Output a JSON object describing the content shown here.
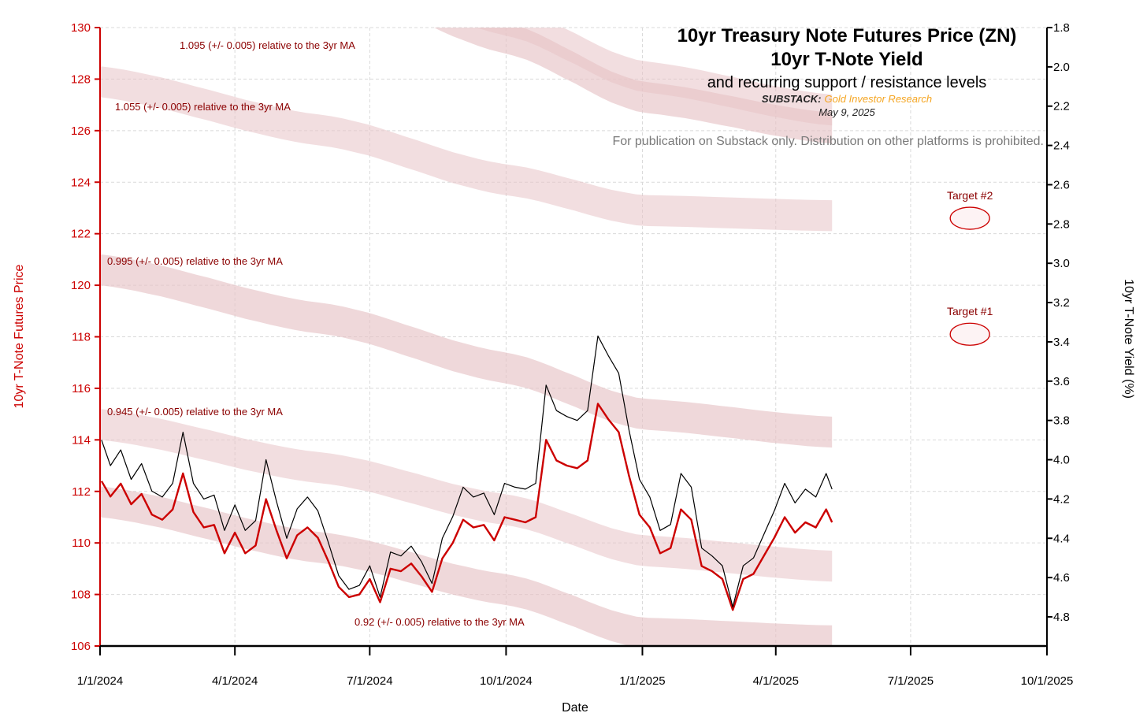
{
  "chart_data": {
    "type": "line",
    "title_lines": [
      "10yr Treasury Note Futures Price (ZN)",
      "10yr T-Note Yield"
    ],
    "subtitle": "and recurring support / resistance levels",
    "source_label": "SUBSTACK:",
    "source_name": "Gold Investor Research",
    "date": "May 9, 2025",
    "notice": "For publication on Substack only. Distribution on other platforms is prohibited.",
    "xlabel": "Date",
    "ylabel_left": "10yr T-Note Futures Price",
    "ylabel_right": "10yr T-Note Yield (%)",
    "x_ticks": [
      "1/1/2024",
      "4/1/2024",
      "7/1/2024",
      "10/1/2024",
      "1/1/2025",
      "4/1/2025",
      "7/1/2025",
      "10/1/2025"
    ],
    "xlim": [
      "2024-01-01",
      "2025-10-01"
    ],
    "ylim_left": [
      106,
      130
    ],
    "y_ticks_left": [
      "106",
      "108",
      "110",
      "112",
      "114",
      "116",
      "118",
      "120",
      "122",
      "124",
      "126",
      "128",
      "130"
    ],
    "y_ticks_right": [
      "1.8",
      "2.0",
      "2.2",
      "2.4",
      "2.6",
      "2.8",
      "3.0",
      "3.2",
      "3.4",
      "3.6",
      "3.8",
      "4.0",
      "4.2",
      "4.4",
      "4.6",
      "4.8"
    ],
    "y_ticks_right_values": [
      1.8,
      2.0,
      2.2,
      2.4,
      2.6,
      2.8,
      3.0,
      3.2,
      3.4,
      3.6,
      3.8,
      4.0,
      4.2,
      4.4,
      4.6,
      4.8
    ],
    "grid": true,
    "colors": {
      "price": "#cc0000",
      "yield": "#000000",
      "band": "#e7c3c6",
      "accent": "#cc0000",
      "source": "#f5a623",
      "label": "#8b0000"
    },
    "bands": [
      {
        "label": "1.095 (+/- 0.005) relative to the 3yr MA",
        "center": [
          [
            "2024-01-01",
            135.3
          ],
          [
            "2024-06-01",
            132.9
          ],
          [
            "2024-10-01",
            130.3
          ],
          [
            "2025-01-01",
            128.1
          ],
          [
            "2025-05-09",
            126.8
          ]
        ],
        "halfwidth": 0.6
      },
      {
        "label": "",
        "center": [
          [
            "2024-01-01",
            134.8
          ],
          [
            "2024-06-01",
            132.3
          ],
          [
            "2024-10-01",
            129.6
          ],
          [
            "2025-01-01",
            127.3
          ],
          [
            "2025-05-09",
            126.1
          ]
        ],
        "halfwidth": 0.6
      },
      {
        "label": "1.055 (+/- 0.005) relative to the 3yr MA",
        "center": [
          [
            "2024-01-01",
            127.9
          ],
          [
            "2024-06-01",
            126.0
          ],
          [
            "2024-10-01",
            124.1
          ],
          [
            "2025-01-01",
            122.9
          ],
          [
            "2025-05-09",
            122.7
          ]
        ],
        "halfwidth": 0.6
      },
      {
        "label": "0.995 (+/- 0.005) relative to the 3yr MA",
        "center": [
          [
            "2024-01-01",
            120.6
          ],
          [
            "2024-06-01",
            118.7
          ],
          [
            "2024-10-01",
            116.8
          ],
          [
            "2025-01-01",
            115.0
          ],
          [
            "2025-05-09",
            114.3
          ]
        ],
        "halfwidth": 0.6
      },
      {
        "label": "0.945 (+/- 0.005) relative to the 3yr MA",
        "center": [
          [
            "2024-01-01",
            114.6
          ],
          [
            "2024-06-01",
            112.9
          ],
          [
            "2024-10-01",
            111.3
          ],
          [
            "2025-01-01",
            109.7
          ],
          [
            "2025-05-09",
            109.1
          ]
        ],
        "halfwidth": 0.6
      },
      {
        "label": "0.92 (+/- 0.005) relative to the 3yr MA",
        "center": [
          [
            "2024-01-01",
            111.6
          ],
          [
            "2024-06-01",
            109.8
          ],
          [
            "2024-10-01",
            108.2
          ],
          [
            "2025-01-01",
            106.5
          ],
          [
            "2025-05-09",
            106.2
          ]
        ],
        "halfwidth": 0.6
      }
    ],
    "targets": [
      {
        "label": "Target #2",
        "date": "2025-08-10",
        "price": 122.6
      },
      {
        "label": "Target #1",
        "date": "2025-08-10",
        "price": 118.1
      }
    ],
    "series": [
      {
        "name": "10yr Treasury Note Futures Price (ZN)",
        "axis": "left",
        "points": [
          [
            "2024-01-02",
            112.4
          ],
          [
            "2024-01-08",
            111.8
          ],
          [
            "2024-01-15",
            112.3
          ],
          [
            "2024-01-22",
            111.5
          ],
          [
            "2024-01-29",
            111.9
          ],
          [
            "2024-02-05",
            111.1
          ],
          [
            "2024-02-12",
            110.9
          ],
          [
            "2024-02-19",
            111.3
          ],
          [
            "2024-02-26",
            112.7
          ],
          [
            "2024-03-04",
            111.2
          ],
          [
            "2024-03-11",
            110.6
          ],
          [
            "2024-03-18",
            110.7
          ],
          [
            "2024-03-25",
            109.6
          ],
          [
            "2024-04-01",
            110.4
          ],
          [
            "2024-04-08",
            109.6
          ],
          [
            "2024-04-15",
            109.9
          ],
          [
            "2024-04-22",
            111.7
          ],
          [
            "2024-04-29",
            110.5
          ],
          [
            "2024-05-06",
            109.4
          ],
          [
            "2024-05-13",
            110.3
          ],
          [
            "2024-05-20",
            110.6
          ],
          [
            "2024-05-27",
            110.2
          ],
          [
            "2024-06-03",
            109.3
          ],
          [
            "2024-06-10",
            108.3
          ],
          [
            "2024-06-17",
            107.9
          ],
          [
            "2024-06-24",
            108.0
          ],
          [
            "2024-07-01",
            108.6
          ],
          [
            "2024-07-08",
            107.7
          ],
          [
            "2024-07-15",
            109.0
          ],
          [
            "2024-07-22",
            108.9
          ],
          [
            "2024-07-29",
            109.2
          ],
          [
            "2024-08-05",
            108.7
          ],
          [
            "2024-08-12",
            108.1
          ],
          [
            "2024-08-19",
            109.4
          ],
          [
            "2024-08-26",
            110.0
          ],
          [
            "2024-09-02",
            110.9
          ],
          [
            "2024-09-09",
            110.6
          ],
          [
            "2024-09-16",
            110.7
          ],
          [
            "2024-09-23",
            110.1
          ],
          [
            "2024-09-30",
            111.0
          ],
          [
            "2024-10-07",
            110.9
          ],
          [
            "2024-10-14",
            110.8
          ],
          [
            "2024-10-21",
            111.0
          ],
          [
            "2024-10-28",
            114.0
          ],
          [
            "2024-11-04",
            113.2
          ],
          [
            "2024-11-11",
            113.0
          ],
          [
            "2024-11-18",
            112.9
          ],
          [
            "2024-11-25",
            113.2
          ],
          [
            "2024-12-02",
            115.4
          ],
          [
            "2024-12-09",
            114.8
          ],
          [
            "2024-12-16",
            114.3
          ],
          [
            "2024-12-23",
            112.6
          ],
          [
            "2024-12-30",
            111.1
          ],
          [
            "2025-01-06",
            110.6
          ],
          [
            "2025-01-13",
            109.6
          ],
          [
            "2025-01-20",
            109.8
          ],
          [
            "2025-01-27",
            111.3
          ],
          [
            "2025-02-03",
            110.9
          ],
          [
            "2025-02-10",
            109.1
          ],
          [
            "2025-02-17",
            108.9
          ],
          [
            "2025-02-24",
            108.6
          ],
          [
            "2025-03-03",
            107.4
          ],
          [
            "2025-03-10",
            108.6
          ],
          [
            "2025-03-17",
            108.8
          ],
          [
            "2025-03-24",
            109.5
          ],
          [
            "2025-03-31",
            110.2
          ],
          [
            "2025-04-07",
            111.0
          ],
          [
            "2025-04-14",
            110.4
          ],
          [
            "2025-04-21",
            110.8
          ],
          [
            "2025-04-28",
            110.6
          ],
          [
            "2025-05-05",
            111.3
          ],
          [
            "2025-05-09",
            110.8
          ]
        ]
      },
      {
        "name": "10yr T-Note Yield",
        "axis": "right",
        "points": [
          [
            "2024-01-02",
            3.9
          ],
          [
            "2024-01-08",
            4.03
          ],
          [
            "2024-01-15",
            3.95
          ],
          [
            "2024-01-22",
            4.1
          ],
          [
            "2024-01-29",
            4.02
          ],
          [
            "2024-02-05",
            4.16
          ],
          [
            "2024-02-12",
            4.19
          ],
          [
            "2024-02-19",
            4.12
          ],
          [
            "2024-02-26",
            3.86
          ],
          [
            "2024-03-04",
            4.12
          ],
          [
            "2024-03-11",
            4.2
          ],
          [
            "2024-03-18",
            4.18
          ],
          [
            "2024-03-25",
            4.36
          ],
          [
            "2024-04-01",
            4.23
          ],
          [
            "2024-04-08",
            4.36
          ],
          [
            "2024-04-15",
            4.31
          ],
          [
            "2024-04-22",
            4.0
          ],
          [
            "2024-04-29",
            4.21
          ],
          [
            "2024-05-06",
            4.4
          ],
          [
            "2024-05-13",
            4.25
          ],
          [
            "2024-05-20",
            4.19
          ],
          [
            "2024-05-27",
            4.26
          ],
          [
            "2024-06-03",
            4.42
          ],
          [
            "2024-06-10",
            4.59
          ],
          [
            "2024-06-17",
            4.66
          ],
          [
            "2024-06-24",
            4.64
          ],
          [
            "2024-07-01",
            4.54
          ],
          [
            "2024-07-08",
            4.7
          ],
          [
            "2024-07-15",
            4.47
          ],
          [
            "2024-07-22",
            4.49
          ],
          [
            "2024-07-29",
            4.44
          ],
          [
            "2024-08-05",
            4.52
          ],
          [
            "2024-08-12",
            4.63
          ],
          [
            "2024-08-19",
            4.4
          ],
          [
            "2024-08-26",
            4.29
          ],
          [
            "2024-09-02",
            4.14
          ],
          [
            "2024-09-09",
            4.19
          ],
          [
            "2024-09-16",
            4.17
          ],
          [
            "2024-09-23",
            4.28
          ],
          [
            "2024-09-30",
            4.12
          ],
          [
            "2024-10-07",
            4.14
          ],
          [
            "2024-10-14",
            4.15
          ],
          [
            "2024-10-21",
            4.12
          ],
          [
            "2024-10-28",
            3.62
          ],
          [
            "2024-11-04",
            3.75
          ],
          [
            "2024-11-11",
            3.78
          ],
          [
            "2024-11-18",
            3.8
          ],
          [
            "2024-11-25",
            3.75
          ],
          [
            "2024-12-02",
            3.37
          ],
          [
            "2024-12-09",
            3.47
          ],
          [
            "2024-12-16",
            3.56
          ],
          [
            "2024-12-23",
            3.85
          ],
          [
            "2024-12-30",
            4.1
          ],
          [
            "2025-01-06",
            4.19
          ],
          [
            "2025-01-13",
            4.36
          ],
          [
            "2025-01-20",
            4.33
          ],
          [
            "2025-01-27",
            4.07
          ],
          [
            "2025-02-03",
            4.14
          ],
          [
            "2025-02-10",
            4.45
          ],
          [
            "2025-02-17",
            4.49
          ],
          [
            "2025-02-24",
            4.54
          ],
          [
            "2025-03-03",
            4.75
          ],
          [
            "2025-03-10",
            4.54
          ],
          [
            "2025-03-17",
            4.5
          ],
          [
            "2025-03-24",
            4.38
          ],
          [
            "2025-03-31",
            4.26
          ],
          [
            "2025-04-07",
            4.12
          ],
          [
            "2025-04-14",
            4.22
          ],
          [
            "2025-04-21",
            4.15
          ],
          [
            "2025-04-28",
            4.19
          ],
          [
            "2025-05-05",
            4.07
          ],
          [
            "2025-05-09",
            4.15
          ]
        ]
      }
    ]
  }
}
